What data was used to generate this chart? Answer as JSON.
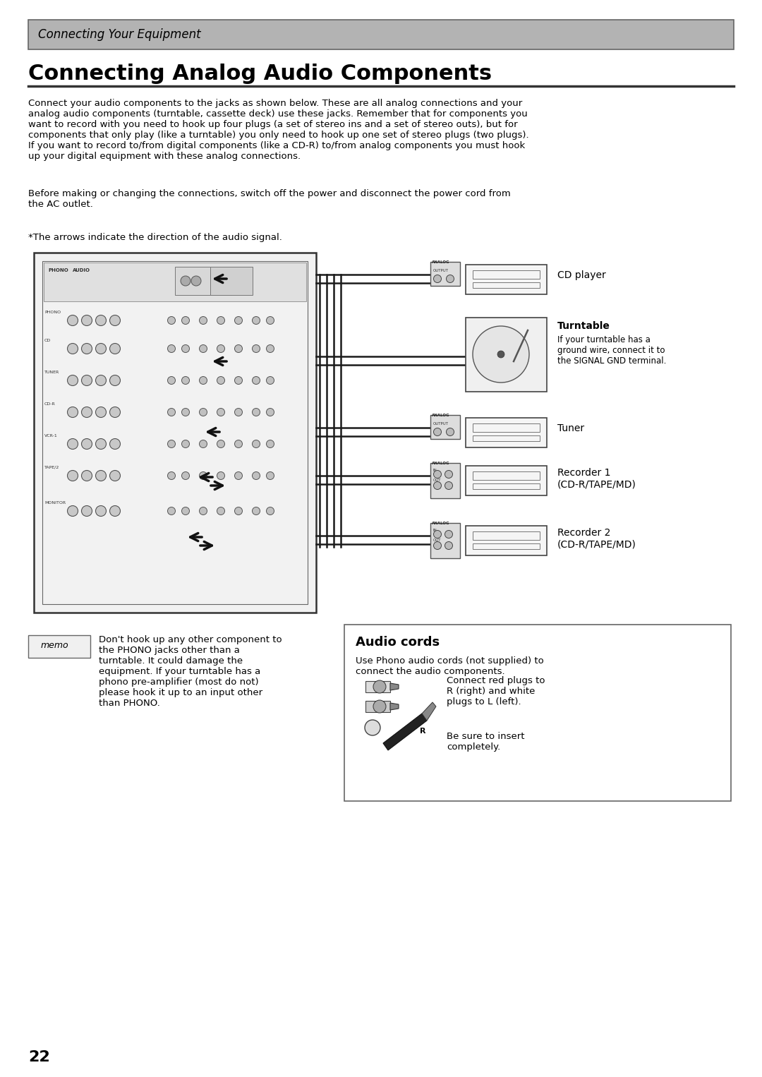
{
  "page_bg": "#ffffff",
  "header_bg": "#b3b3b3",
  "header_text": "Connecting Your Equipment",
  "header_font_size": 12,
  "title": "Connecting Analog Audio Components",
  "title_font_size": 22,
  "body_text_1": "Connect your audio components to the jacks as shown below. These are all analog connections and your\nanalog audio components (turntable, cassette deck) use these jacks. Remember that for components you\nwant to record with you need to hook up four plugs (a set of stereo ins and a set of stereo outs), but for\ncomponents that only play (like a turntable) you only need to hook up one set of stereo plugs (two plugs).\nIf you want to record to/from digital components (like a CD-R) to/from analog components you must hook\nup your digital equipment with these analog connections.",
  "body_text_2": "Before making or changing the connections, switch off the power and disconnect the power cord from\nthe AC outlet.",
  "arrow_note": "*The arrows indicate the direction of the audio signal.",
  "cd_player_label": "CD player",
  "turntable_label": "Turntable",
  "turntable_note": "If your turntable has a\nground wire, connect it to\nthe SIGNAL GND terminal.",
  "tuner_label": "Tuner",
  "recorder1_label": "Recorder 1\n(CD-R/TAPE/MD)",
  "recorder2_label": "Recorder 2\n(CD-R/TAPE/MD)",
  "memo_text": "Don't hook up any other component to\nthe PHONO jacks other than a\nturntable. It could damage the\nequipment. If your turntable has a\nphono pre-amplifier (most do not)\nplease hook it up to an input other\nthan PHONO.",
  "audio_cords_title": "Audio cords",
  "audio_cords_text1": "Use Phono audio cords (not supplied) to\nconnect the audio components.",
  "audio_cords_text2": "Connect red plugs to\nR (right) and white\nplugs to L (left).",
  "audio_cords_text3": "Be sure to insert\ncompletely.",
  "page_number": "22",
  "body_font_size": 9.5,
  "line_color": "#333333"
}
